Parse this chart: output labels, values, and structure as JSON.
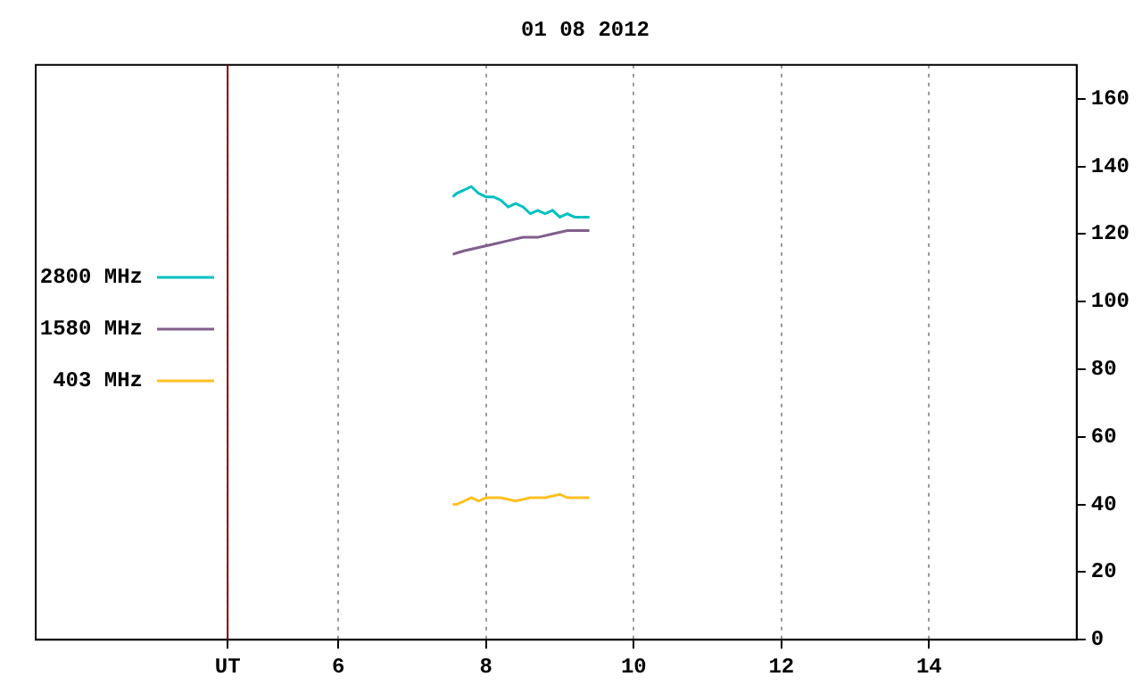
{
  "chart_data": {
    "type": "line",
    "title": "01 08 2012",
    "xlim": [
      1.9,
      16
    ],
    "xticks": [
      {
        "value": 4.5,
        "label": "UT"
      },
      6,
      8,
      10,
      12,
      14
    ],
    "ylim": [
      0,
      170
    ],
    "yticks": [
      0,
      20,
      40,
      60,
      80,
      100,
      120,
      140,
      160
    ],
    "grid": "x",
    "legend": "left",
    "marker": "none",
    "line_style": "solid",
    "ref_lines": [
      {
        "axis": "x",
        "value": 4.5,
        "label": null,
        "color": "#8b0000"
      }
    ],
    "series": [
      {
        "name": "2800 MHz",
        "color": "#00c0c0",
        "x": [
          7.55,
          7.6,
          7.7,
          7.8,
          7.9,
          8.0,
          8.1,
          8.2,
          8.3,
          8.4,
          8.5,
          8.6,
          8.7,
          8.8,
          8.9,
          9.0,
          9.1,
          9.2,
          9.3,
          9.4
        ],
        "values": [
          131,
          132,
          133,
          134,
          132,
          131,
          131,
          130,
          128,
          129,
          128,
          126,
          127,
          126,
          127,
          125,
          126,
          125,
          125,
          125
        ]
      },
      {
        "name": "1580 MHz",
        "color": "#7f5f8a",
        "x": [
          7.55,
          7.7,
          7.9,
          8.1,
          8.3,
          8.5,
          8.7,
          8.9,
          9.1,
          9.3,
          9.4
        ],
        "values": [
          114,
          115,
          116,
          117,
          118,
          119,
          119,
          120,
          121,
          121,
          121
        ]
      },
      {
        "name": "403 MHz",
        "color": "#ffc020",
        "x": [
          7.55,
          7.6,
          7.7,
          7.8,
          7.9,
          8.0,
          8.2,
          8.4,
          8.6,
          8.8,
          9.0,
          9.1,
          9.2,
          9.4
        ],
        "values": [
          40,
          40,
          41,
          42,
          41,
          42,
          42,
          41,
          42,
          42,
          43,
          42,
          42,
          42
        ]
      }
    ]
  }
}
